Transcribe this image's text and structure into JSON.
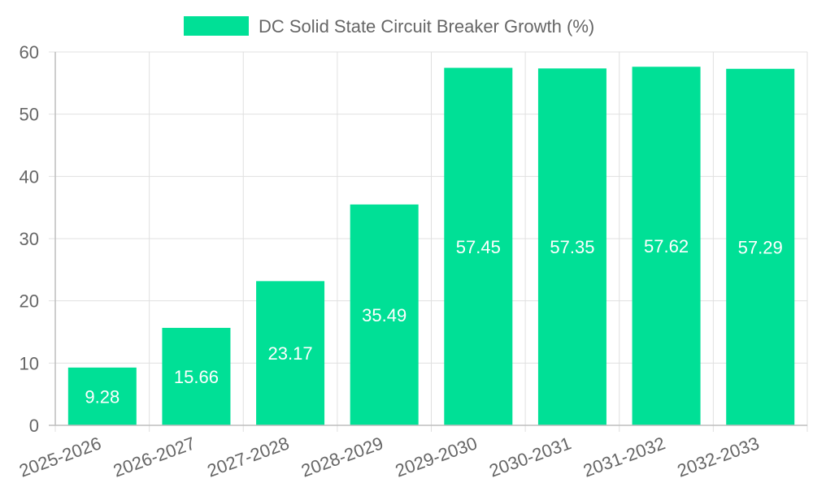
{
  "chart_data": {
    "type": "bar",
    "categories": [
      "2025-2026",
      "2026-2027",
      "2027-2028",
      "2028-2029",
      "2029-2030",
      "2030-2031",
      "2031-2032",
      "2032-2033"
    ],
    "series": [
      {
        "name": "DC Solid State Circuit Breaker Growth (%)",
        "values": [
          9.28,
          15.66,
          23.17,
          35.49,
          57.45,
          57.35,
          57.62,
          57.29
        ],
        "color": "#00E096"
      }
    ],
    "data_labels": [
      "9.28",
      "15.66",
      "23.17",
      "35.49",
      "57.45",
      "57.35",
      "57.62",
      "57.29"
    ],
    "yticks": [
      "0",
      "10",
      "20",
      "30",
      "40",
      "50",
      "60"
    ],
    "ylim": [
      0,
      60
    ],
    "grid": true,
    "legend_position": "top",
    "xlabel": "",
    "ylabel": ""
  },
  "colors": {
    "bar": "#00E096",
    "grid": "#e0e0e0",
    "axis": "#bdbdbd",
    "text": "#666666",
    "label": "#ffffff"
  }
}
